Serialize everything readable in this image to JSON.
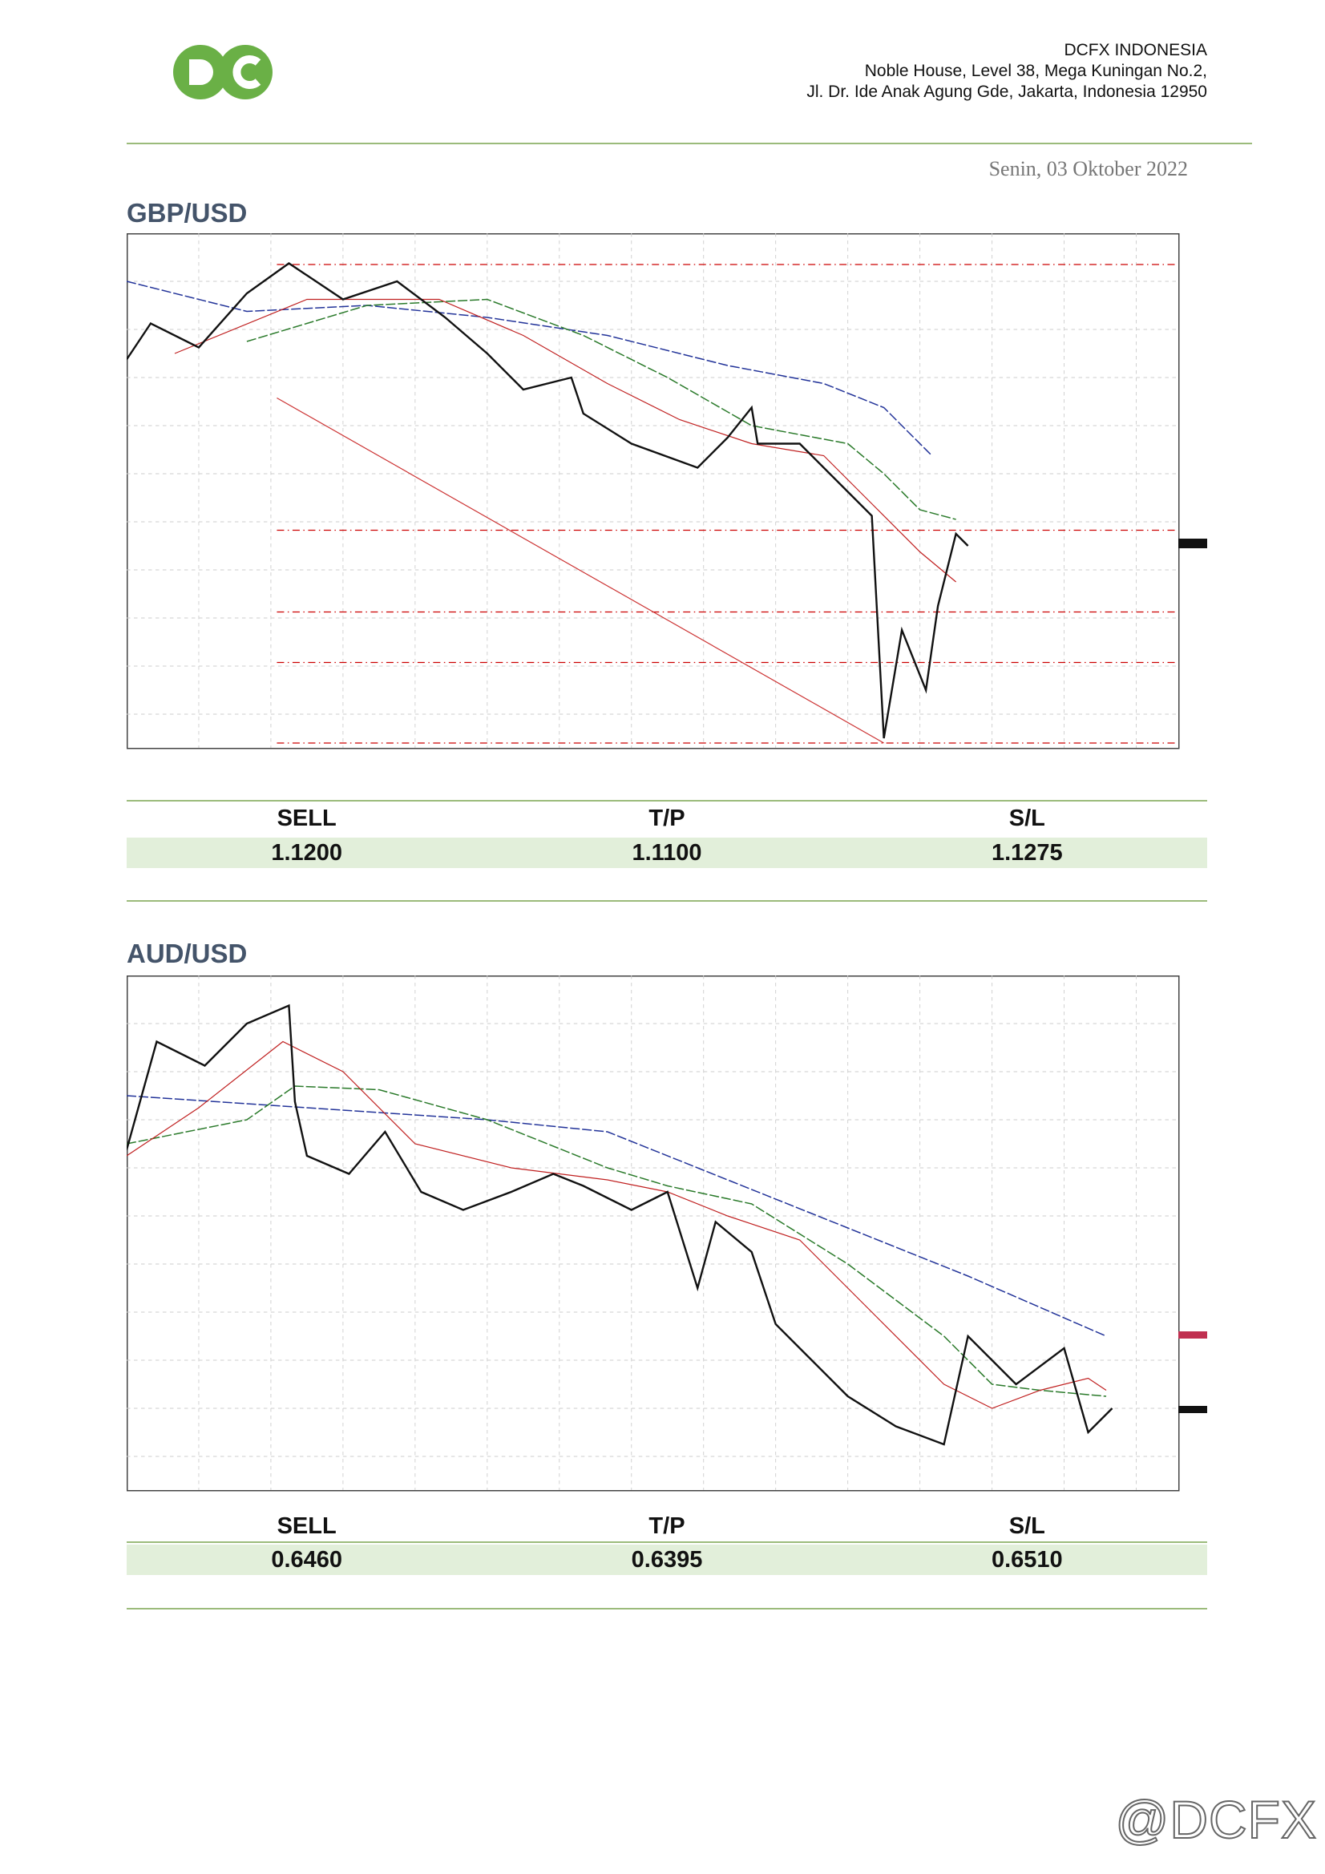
{
  "header": {
    "logo": "DC",
    "company": "DCFX INDONESIA",
    "address": [
      "Noble House, Level 38, Mega Kuningan No.2,",
      "Jl. Dr. Ide Anak Agung Gde, Jakarta, Indonesia 12950"
    ]
  },
  "date": "Senin, 03 Oktober 2022",
  "sections": [
    {
      "title": "GBP/USD",
      "table": {
        "headers": [
          "SELL",
          "T/P",
          "S/L"
        ],
        "values": [
          "1.1200",
          "1.1100",
          "1.1275"
        ]
      }
    },
    {
      "title": "AUD/USD",
      "table": {
        "headers": [
          "SELL",
          "T/P",
          "S/L"
        ],
        "values": [
          "0.6460",
          "0.6395",
          "0.6510"
        ]
      }
    }
  ],
  "watermark": "@DCFX"
}
